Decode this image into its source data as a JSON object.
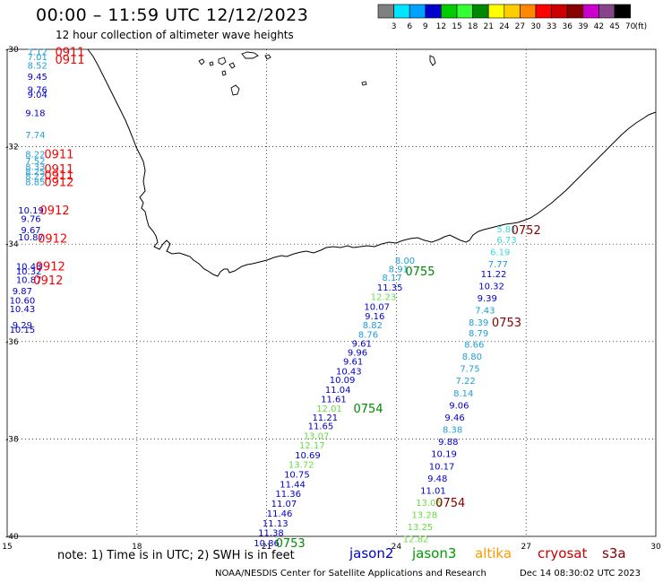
{
  "header": {
    "title": "00:00 – 11:59 UTC 12/12/2023",
    "subtitle": "12 hour collection of altimeter wave heights"
  },
  "colorbar": {
    "unit": "(ft)",
    "bins": [
      {
        "label": "3",
        "color": "#808080"
      },
      {
        "label": "6",
        "color": "#00e5ff"
      },
      {
        "label": "9",
        "color": "#00a0ff"
      },
      {
        "label": "12",
        "color": "#0000cc"
      },
      {
        "label": "15",
        "color": "#00cc00"
      },
      {
        "label": "18",
        "color": "#33ff33"
      },
      {
        "label": "21",
        "color": "#008800"
      },
      {
        "label": "24",
        "color": "#ffff00"
      },
      {
        "label": "27",
        "color": "#ffcc00"
      },
      {
        "label": "30",
        "color": "#ff8800"
      },
      {
        "label": "33",
        "color": "#ff0000"
      },
      {
        "label": "36",
        "color": "#cc0000"
      },
      {
        "label": "39",
        "color": "#880000"
      },
      {
        "label": "42",
        "color": "#cc00cc"
      },
      {
        "label": "45",
        "color": "#884488"
      },
      {
        "label": "70",
        "color": "#000000"
      }
    ]
  },
  "axes": {
    "lat_labels": [
      "-30",
      "-32",
      "-34",
      "-36",
      "-38",
      "-40"
    ],
    "lon_labels": [
      "15",
      "18",
      "21",
      "24",
      "27",
      "30"
    ]
  },
  "note": "note: 1) Time is in UTC; 2) SWH is in feet",
  "satellites": [
    {
      "name": "jason2",
      "color": "#0000cc"
    },
    {
      "name": "jason3",
      "color": "#009900"
    },
    {
      "name": "altika",
      "color": "#ff9900"
    },
    {
      "name": "cryosat",
      "color": "#cc0000"
    },
    {
      "name": "s3a",
      "color": "#880000"
    }
  ],
  "footer": {
    "credit": "NOAA/NESDIS Center for Satellite Applications and Research",
    "timestamp": "Dec 14 08:30:02 UTC 2023"
  },
  "measurements": [
    {
      "lon": 15.7,
      "lat": -30.05,
      "v": "7.12",
      "c": "#1e9fd8"
    },
    {
      "lon": 15.7,
      "lat": -30.15,
      "v": "7.01",
      "c": "#1e9fd8"
    },
    {
      "lon": 15.7,
      "lat": -30.32,
      "v": "8.52",
      "c": "#1e9fd8"
    },
    {
      "lon": 15.7,
      "lat": -30.55,
      "v": "9.45",
      "c": "#0000cc"
    },
    {
      "lon": 15.7,
      "lat": -30.82,
      "v": "9.76",
      "c": "#0000cc"
    },
    {
      "lon": 15.7,
      "lat": -30.92,
      "v": "9.04",
      "c": "#0000cc"
    },
    {
      "lon": 15.65,
      "lat": -31.3,
      "v": "9.18",
      "c": "#0000cc"
    },
    {
      "lon": 15.65,
      "lat": -31.75,
      "v": "7.74",
      "c": "#1e9fd8"
    },
    {
      "lon": 15.65,
      "lat": -32.15,
      "v": "8.22",
      "c": "#1e9fd8"
    },
    {
      "lon": 15.65,
      "lat": -32.28,
      "v": "7.52",
      "c": "#1e9fd8"
    },
    {
      "lon": 15.65,
      "lat": -32.4,
      "v": "8.33",
      "c": "#1e9fd8"
    },
    {
      "lon": 15.65,
      "lat": -32.5,
      "v": "8.25",
      "c": "#1e9fd8"
    },
    {
      "lon": 15.65,
      "lat": -32.6,
      "v": "8.22",
      "c": "#1e9fd8"
    },
    {
      "lon": 15.65,
      "lat": -32.72,
      "v": "8.85",
      "c": "#1e9fd8"
    },
    {
      "lon": 15.55,
      "lat": -33.3,
      "v": "10.19",
      "c": "#0000cc"
    },
    {
      "lon": 15.55,
      "lat": -33.47,
      "v": "9.76",
      "c": "#0000cc"
    },
    {
      "lon": 15.55,
      "lat": -33.7,
      "v": "9.67",
      "c": "#0000cc"
    },
    {
      "lon": 15.55,
      "lat": -33.85,
      "v": "10.87",
      "c": "#0000cc"
    },
    {
      "lon": 15.5,
      "lat": -34.45,
      "v": "10.48",
      "c": "#0000cc"
    },
    {
      "lon": 15.5,
      "lat": -34.55,
      "v": "10.32",
      "c": "#0000cc"
    },
    {
      "lon": 15.5,
      "lat": -34.72,
      "v": "10.87",
      "c": "#0000cc"
    },
    {
      "lon": 15.35,
      "lat": -34.95,
      "v": "9.87",
      "c": "#0000cc"
    },
    {
      "lon": 15.35,
      "lat": -35.15,
      "v": "10.60",
      "c": "#0000cc"
    },
    {
      "lon": 15.35,
      "lat": -35.32,
      "v": "10.43",
      "c": "#0000cc"
    },
    {
      "lon": 15.35,
      "lat": -35.65,
      "v": "9.29",
      "c": "#0000cc"
    },
    {
      "lon": 15.35,
      "lat": -35.75,
      "v": "10.15",
      "c": "#0000cc"
    },
    {
      "lon": 24.2,
      "lat": -34.33,
      "v": "8.00",
      "c": "#1e9fd8"
    },
    {
      "lon": 24.05,
      "lat": -34.5,
      "v": "8.91",
      "c": "#1e9fd8"
    },
    {
      "lon": 23.9,
      "lat": -34.68,
      "v": "8.17",
      "c": "#1e9fd8"
    },
    {
      "lon": 23.85,
      "lat": -34.88,
      "v": "11.35",
      "c": "#0000cc"
    },
    {
      "lon": 23.7,
      "lat": -35.07,
      "v": "12.23",
      "c": "#66dd44"
    },
    {
      "lon": 23.55,
      "lat": -35.28,
      "v": "10.07",
      "c": "#0000cc"
    },
    {
      "lon": 23.5,
      "lat": -35.47,
      "v": "9.16",
      "c": "#0000cc"
    },
    {
      "lon": 23.45,
      "lat": -35.65,
      "v": "8.82",
      "c": "#1e9fd8"
    },
    {
      "lon": 23.35,
      "lat": -35.85,
      "v": "8.76",
      "c": "#1e9fd8"
    },
    {
      "lon": 23.2,
      "lat": -36.03,
      "v": "9.61",
      "c": "#0000cc"
    },
    {
      "lon": 23.1,
      "lat": -36.22,
      "v": "9.96",
      "c": "#0000cc"
    },
    {
      "lon": 23.0,
      "lat": -36.4,
      "v": "9.61",
      "c": "#0000cc"
    },
    {
      "lon": 22.9,
      "lat": -36.6,
      "v": "10.43",
      "c": "#0000cc"
    },
    {
      "lon": 22.75,
      "lat": -36.78,
      "v": "10.09",
      "c": "#0000cc"
    },
    {
      "lon": 22.65,
      "lat": -36.98,
      "v": "11.04",
      "c": "#0000cc"
    },
    {
      "lon": 22.55,
      "lat": -37.17,
      "v": "11.61",
      "c": "#0000cc"
    },
    {
      "lon": 22.45,
      "lat": -37.37,
      "v": "12.01",
      "c": "#66dd44"
    },
    {
      "lon": 22.35,
      "lat": -37.55,
      "v": "11.21",
      "c": "#0000cc"
    },
    {
      "lon": 22.25,
      "lat": -37.73,
      "v": "11.65",
      "c": "#0000cc"
    },
    {
      "lon": 22.15,
      "lat": -37.93,
      "v": "13.07",
      "c": "#66dd44"
    },
    {
      "lon": 22.05,
      "lat": -38.12,
      "v": "12.17",
      "c": "#66dd44"
    },
    {
      "lon": 21.95,
      "lat": -38.32,
      "v": "10.69",
      "c": "#0000cc"
    },
    {
      "lon": 21.8,
      "lat": -38.52,
      "v": "13.72",
      "c": "#66dd44"
    },
    {
      "lon": 21.7,
      "lat": -38.72,
      "v": "10.75",
      "c": "#0000cc"
    },
    {
      "lon": 21.6,
      "lat": -38.92,
      "v": "11.44",
      "c": "#0000cc"
    },
    {
      "lon": 21.5,
      "lat": -39.12,
      "v": "11.36",
      "c": "#0000cc"
    },
    {
      "lon": 21.4,
      "lat": -39.32,
      "v": "11.07",
      "c": "#0000cc"
    },
    {
      "lon": 21.3,
      "lat": -39.52,
      "v": "11.46",
      "c": "#0000cc"
    },
    {
      "lon": 21.2,
      "lat": -39.72,
      "v": "11.13",
      "c": "#0000cc"
    },
    {
      "lon": 21.1,
      "lat": -39.92,
      "v": "11.38",
      "c": "#0000cc"
    },
    {
      "lon": 21.0,
      "lat": -40.13,
      "v": "10.86",
      "c": "#0000cc"
    },
    {
      "lon": 26.55,
      "lat": -33.68,
      "v": "5.81",
      "c": "#33dddd"
    },
    {
      "lon": 26.55,
      "lat": -33.9,
      "v": "6.73",
      "c": "#33dddd"
    },
    {
      "lon": 26.4,
      "lat": -34.15,
      "v": "6.19",
      "c": "#33dddd"
    },
    {
      "lon": 26.35,
      "lat": -34.4,
      "v": "7.77",
      "c": "#1e9fd8"
    },
    {
      "lon": 26.25,
      "lat": -34.6,
      "v": "11.22",
      "c": "#0000cc"
    },
    {
      "lon": 26.2,
      "lat": -34.85,
      "v": "10.32",
      "c": "#0000cc"
    },
    {
      "lon": 26.1,
      "lat": -35.1,
      "v": "9.39",
      "c": "#0000cc"
    },
    {
      "lon": 26.05,
      "lat": -35.35,
      "v": "7.43",
      "c": "#1e9fd8"
    },
    {
      "lon": 25.9,
      "lat": -35.6,
      "v": "8.39",
      "c": "#1e9fd8"
    },
    {
      "lon": 25.9,
      "lat": -35.82,
      "v": "8.79",
      "c": "#1e9fd8"
    },
    {
      "lon": 25.8,
      "lat": -36.05,
      "v": "8.66",
      "c": "#1e9fd8"
    },
    {
      "lon": 25.75,
      "lat": -36.3,
      "v": "8.80",
      "c": "#1e9fd8"
    },
    {
      "lon": 25.7,
      "lat": -36.55,
      "v": "7.75",
      "c": "#1e9fd8"
    },
    {
      "lon": 25.6,
      "lat": -36.8,
      "v": "7.22",
      "c": "#1e9fd8"
    },
    {
      "lon": 25.55,
      "lat": -37.05,
      "v": "8.14",
      "c": "#1e9fd8"
    },
    {
      "lon": 25.45,
      "lat": -37.3,
      "v": "9.06",
      "c": "#0000cc"
    },
    {
      "lon": 25.35,
      "lat": -37.55,
      "v": "9.46",
      "c": "#0000cc"
    },
    {
      "lon": 25.3,
      "lat": -37.8,
      "v": "8.38",
      "c": "#1e9fd8"
    },
    {
      "lon": 25.2,
      "lat": -38.05,
      "v": "9.88",
      "c": "#0000cc"
    },
    {
      "lon": 25.1,
      "lat": -38.3,
      "v": "10.19",
      "c": "#0000cc"
    },
    {
      "lon": 25.05,
      "lat": -38.55,
      "v": "10.17",
      "c": "#0000cc"
    },
    {
      "lon": 24.95,
      "lat": -38.8,
      "v": "9.48",
      "c": "#0000cc"
    },
    {
      "lon": 24.85,
      "lat": -39.05,
      "v": "11.01",
      "c": "#0000cc"
    },
    {
      "lon": 24.75,
      "lat": -39.3,
      "v": "13.06",
      "c": "#66dd44"
    },
    {
      "lon": 24.65,
      "lat": -39.55,
      "v": "13.28",
      "c": "#66dd44"
    },
    {
      "lon": 24.55,
      "lat": -39.8,
      "v": "13.25",
      "c": "#66dd44"
    },
    {
      "lon": 24.45,
      "lat": -40.05,
      "v": "12.82",
      "c": "#66dd44"
    }
  ],
  "pass_labels": [
    {
      "lon": 16.45,
      "lat": -30.05,
      "t": "0911",
      "c": "#ff0000"
    },
    {
      "lon": 16.45,
      "lat": -30.2,
      "t": "0911",
      "c": "#ff0000"
    },
    {
      "lon": 16.2,
      "lat": -32.15,
      "t": "0911",
      "c": "#ff0000"
    },
    {
      "lon": 16.2,
      "lat": -32.45,
      "t": "0911",
      "c": "#ff0000"
    },
    {
      "lon": 16.2,
      "lat": -32.58,
      "t": "0911",
      "c": "#ff0000"
    },
    {
      "lon": 16.2,
      "lat": -32.72,
      "t": "0912",
      "c": "#ff0000"
    },
    {
      "lon": 16.1,
      "lat": -33.3,
      "t": "0912",
      "c": "#ff0000"
    },
    {
      "lon": 16.05,
      "lat": -33.88,
      "t": "0912",
      "c": "#ff0000"
    },
    {
      "lon": 16.0,
      "lat": -34.45,
      "t": "0912",
      "c": "#ff0000"
    },
    {
      "lon": 15.95,
      "lat": -34.73,
      "t": "0912",
      "c": "#ff0000"
    },
    {
      "lon": 24.55,
      "lat": -34.55,
      "t": "0755",
      "c": "#008800"
    },
    {
      "lon": 23.35,
      "lat": -37.37,
      "t": "0754",
      "c": "#008800"
    },
    {
      "lon": 21.55,
      "lat": -40.13,
      "t": "0753",
      "c": "#008800"
    },
    {
      "lon": 27.0,
      "lat": -33.7,
      "t": "0752",
      "c": "#880000"
    },
    {
      "lon": 26.55,
      "lat": -35.6,
      "t": "0753",
      "c": "#880000"
    },
    {
      "lon": 25.25,
      "lat": -39.3,
      "t": "0754",
      "c": "#880000"
    }
  ]
}
